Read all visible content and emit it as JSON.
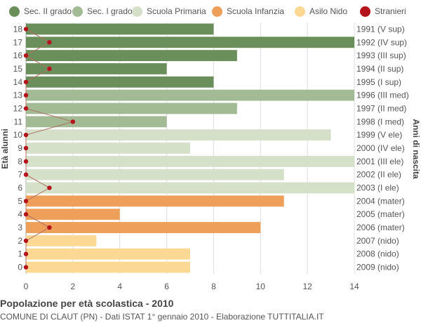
{
  "chart_data": {
    "type": "bar",
    "orientation": "horizontal",
    "title": "Popolazione per età scolastica - 2010",
    "subtitle": "COMUNE DI CLAUT (PN) - Dati ISTAT 1° gennaio 2010 - Elaborazione TUTTITALIA.IT",
    "ylabel": "Età alunni",
    "y2label": "Anni di nascita",
    "xlim": [
      0,
      14
    ],
    "x_ticks": [
      0,
      2,
      4,
      6,
      8,
      10,
      12,
      14
    ],
    "grid": true,
    "legend_position": "top",
    "legend": [
      {
        "name": "Sec. II grado",
        "color": "#6b8f5a"
      },
      {
        "name": "Sec. I grado",
        "color": "#a3bb94"
      },
      {
        "name": "Scuola Primaria",
        "color": "#d5e0c9"
      },
      {
        "name": "Scuola Infanzia",
        "color": "#eea05a"
      },
      {
        "name": "Asilo Nido",
        "color": "#fbd995"
      },
      {
        "name": "Stranieri",
        "color": "#b5121b"
      }
    ],
    "categories": [
      18,
      17,
      16,
      15,
      14,
      13,
      12,
      11,
      10,
      9,
      8,
      7,
      6,
      5,
      4,
      3,
      2,
      1,
      0
    ],
    "birth_years": [
      "1991 (V sup)",
      "1992 (IV sup)",
      "1993 (III sup)",
      "1994 (II sup)",
      "1995 (I sup)",
      "1996 (III med)",
      "1997 (II med)",
      "1998 (I med)",
      "1999 (V ele)",
      "2000 (IV ele)",
      "2001 (III ele)",
      "2002 (II ele)",
      "2003 (I ele)",
      "2004 (mater)",
      "2005 (mater)",
      "2006 (mater)",
      "2007 (nido)",
      "2008 (nido)",
      "2009 (nido)"
    ],
    "group_index": [
      0,
      0,
      0,
      0,
      0,
      1,
      1,
      1,
      2,
      2,
      2,
      2,
      2,
      3,
      3,
      3,
      4,
      4,
      4
    ],
    "values": [
      8,
      14,
      9,
      6,
      8,
      14,
      9,
      6,
      13,
      7,
      14,
      11,
      14,
      11,
      4,
      10,
      3,
      7,
      7
    ],
    "stranieri": [
      0,
      1,
      0,
      1,
      0,
      0,
      0,
      2,
      0,
      0,
      0,
      0,
      1,
      0,
      0,
      1,
      0,
      0,
      0
    ]
  }
}
